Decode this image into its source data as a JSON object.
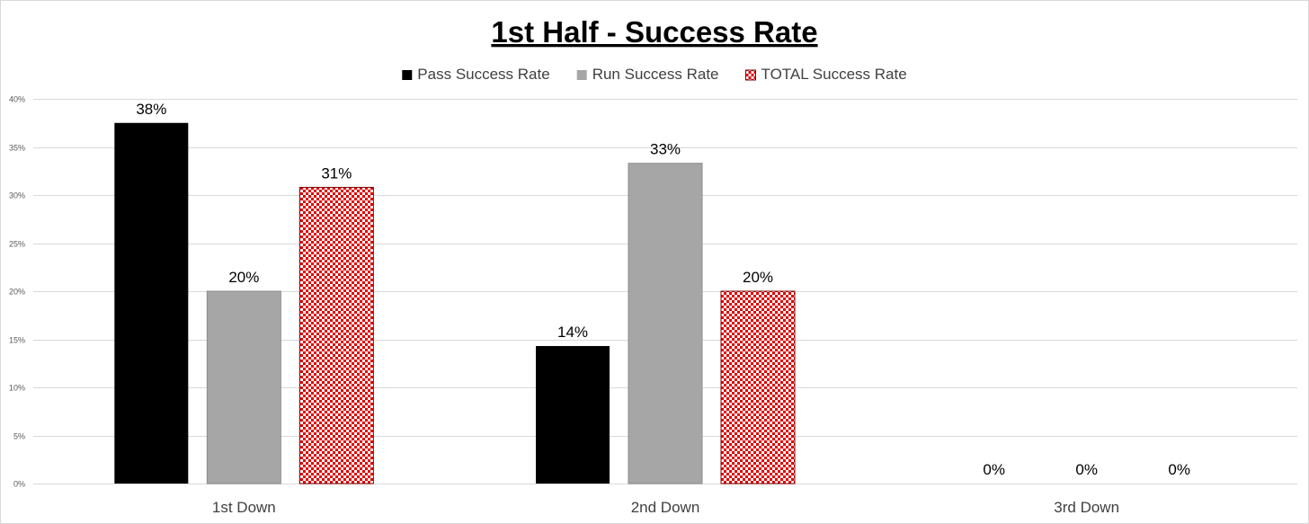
{
  "chart_data": {
    "type": "bar",
    "title": "1st Half - Success Rate",
    "categories": [
      "1st Down",
      "2nd Down",
      "3rd Down"
    ],
    "series": [
      {
        "name": "Pass Success Rate",
        "values": [
          0.375,
          0.143,
          0
        ],
        "labels": [
          "38%",
          "14%",
          "0%"
        ],
        "color": "#000000",
        "fill": "solid"
      },
      {
        "name": "Run Success Rate",
        "values": [
          0.2,
          0.333,
          0
        ],
        "labels": [
          "20%",
          "33%",
          "0%"
        ],
        "color": "#a6a6a6",
        "fill": "solid"
      },
      {
        "name": "TOTAL Success Rate",
        "values": [
          0.308,
          0.2,
          0
        ],
        "labels": [
          "31%",
          "20%",
          "0%"
        ],
        "color": "#e00000",
        "fill": "checkered"
      }
    ],
    "ylim": [
      0,
      0.4
    ],
    "yticks": [
      0,
      0.05,
      0.1,
      0.15,
      0.2,
      0.25,
      0.3,
      0.35,
      0.4
    ],
    "ytick_labels": [
      "0%",
      "5%",
      "10%",
      "15%",
      "20%",
      "25%",
      "30%",
      "35%",
      "40%"
    ],
    "xlabel": "",
    "ylabel": "",
    "grid": true,
    "legend_position": "top-center"
  }
}
